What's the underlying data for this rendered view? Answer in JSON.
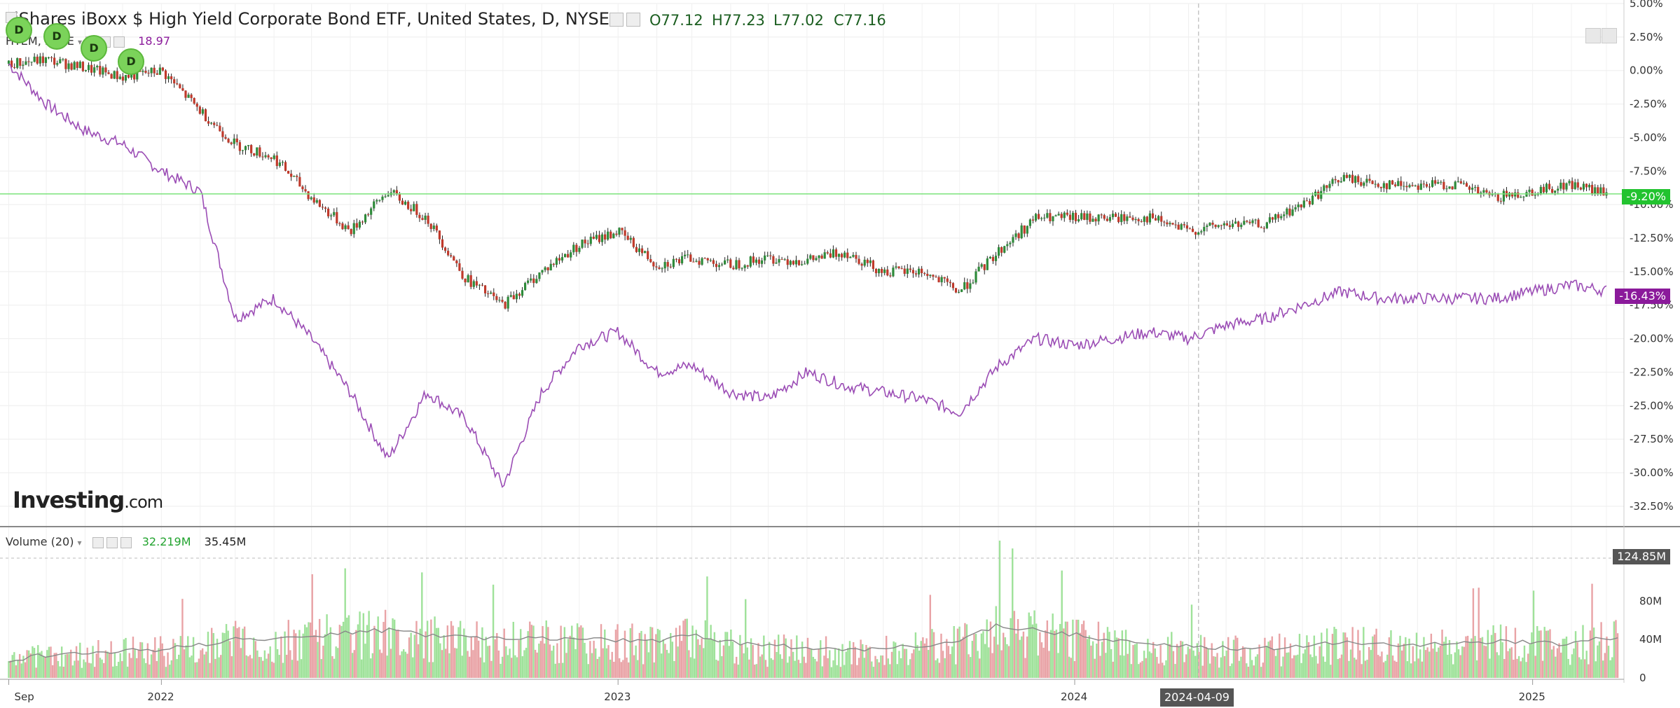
{
  "header": {
    "title": "iShares iBoxx $ High Yield Corporate Bond ETF, United States, D, NYSE",
    "open": "O77.12",
    "high": "H77.23",
    "low": "L77.02",
    "close": "C77.16",
    "compare_symbol": "HYEM, NYSE",
    "compare_value": "18.97",
    "volume_label": "Volume (20)",
    "volume_value_1": "32.219M",
    "volume_value_2": "35.45M"
  },
  "logo": {
    "main": "Investing",
    "suffix": ".com"
  },
  "dividend_marker_label": "D",
  "crosshair_date": "2024-04-09",
  "colors": {
    "up": "#2e8b3a",
    "down": "#c0392b",
    "vol_up": "#9fe29a",
    "vol_down": "#e9a3a6",
    "compare_line": "#9b4db5",
    "volume_ma": "#888888",
    "current_line": "#7be37b",
    "badge_main": "#22c32f",
    "badge_compare": "#8b1a9b",
    "badge_volume": "#555555"
  },
  "chart_data": [
    {
      "type": "line",
      "title": "iShares iBoxx $ High Yield Corporate Bond ETF, United States, D, NYSE",
      "y_unit": "%",
      "ylim": [
        -33.5,
        5.0
      ],
      "y_ticks": [
        "5.00%",
        "2.50%",
        "0.00%",
        "-2.50%",
        "-5.00%",
        "-7.50%",
        "-10.00%",
        "-12.50%",
        "-15.00%",
        "-17.50%",
        "-20.00%",
        "-22.50%",
        "-25.00%",
        "-27.50%",
        "-30.00%",
        "-32.50%"
      ],
      "x_ticks": [
        "Sep",
        "2022",
        "2023",
        "2024",
        "2025"
      ],
      "x_tick_values": [
        "2021-09",
        "2022-01",
        "2023-01",
        "2024-01",
        "2025-01"
      ],
      "grid": true,
      "current_values": {
        "main": "-9.20%",
        "compare": "-16.43%"
      },
      "series": [
        {
          "name": "iShares iBoxx $ High Yield Corporate Bond ETF",
          "style": "candlestick",
          "x": [
            "2021-09-01",
            "2021-10-01",
            "2021-11-01",
            "2021-12-01",
            "2022-01-01",
            "2022-02-01",
            "2022-03-01",
            "2022-04-01",
            "2022-05-01",
            "2022-06-01",
            "2022-07-01",
            "2022-08-01",
            "2022-09-01",
            "2022-10-01",
            "2022-11-01",
            "2022-12-01",
            "2023-01-01",
            "2023-02-01",
            "2023-03-01",
            "2023-04-01",
            "2023-05-01",
            "2023-06-01",
            "2023-07-01",
            "2023-08-01",
            "2023-09-01",
            "2023-10-01",
            "2023-11-01",
            "2023-12-01",
            "2024-01-01",
            "2024-02-01",
            "2024-03-01",
            "2024-04-01",
            "2024-05-01",
            "2024-06-01",
            "2024-07-01",
            "2024-08-01",
            "2024-09-01",
            "2024-10-01",
            "2024-11-01",
            "2024-12-01",
            "2025-01-01",
            "2025-02-01",
            "2025-03-01"
          ],
          "values": [
            0.5,
            0.8,
            0.2,
            -0.5,
            0.0,
            -3.0,
            -5.5,
            -6.5,
            -9.5,
            -12.0,
            -9.0,
            -11.0,
            -15.5,
            -17.5,
            -15.0,
            -13.0,
            -12.0,
            -14.5,
            -14.0,
            -14.5,
            -14.0,
            -14.2,
            -13.5,
            -15.0,
            -15.0,
            -16.5,
            -13.5,
            -11.0,
            -11.0,
            -11.0,
            -11.0,
            -12.0,
            -11.5,
            -11.5,
            -10.0,
            -8.0,
            -8.5,
            -8.5,
            -8.5,
            -9.5,
            -9.0,
            -8.5,
            -9.2
          ]
        },
        {
          "name": "HYEM, NYSE",
          "style": "line",
          "x": [
            "2021-09-01",
            "2021-10-01",
            "2021-11-01",
            "2021-12-01",
            "2022-01-01",
            "2022-02-01",
            "2022-03-01",
            "2022-04-01",
            "2022-05-01",
            "2022-06-01",
            "2022-07-01",
            "2022-08-01",
            "2022-09-01",
            "2022-10-01",
            "2022-11-01",
            "2022-12-01",
            "2023-01-01",
            "2023-02-01",
            "2023-03-01",
            "2023-04-01",
            "2023-05-01",
            "2023-06-01",
            "2023-07-01",
            "2023-08-01",
            "2023-09-01",
            "2023-10-01",
            "2023-11-01",
            "2023-12-01",
            "2024-01-01",
            "2024-02-01",
            "2024-03-01",
            "2024-04-01",
            "2024-05-01",
            "2024-06-01",
            "2024-07-01",
            "2024-08-01",
            "2024-09-01",
            "2024-10-01",
            "2024-11-01",
            "2024-12-01",
            "2025-01-01",
            "2025-02-01",
            "2025-03-01"
          ],
          "values": [
            0.5,
            -2.5,
            -4.5,
            -5.5,
            -7.5,
            -9.0,
            -18.5,
            -17.0,
            -20.0,
            -24.0,
            -29.0,
            -24.0,
            -26.0,
            -31.0,
            -24.0,
            -20.5,
            -19.5,
            -22.5,
            -22.0,
            -24.0,
            -24.5,
            -22.5,
            -23.5,
            -24.0,
            -24.5,
            -25.5,
            -22.0,
            -20.0,
            -20.5,
            -20.0,
            -19.5,
            -20.0,
            -19.0,
            -18.5,
            -17.5,
            -16.5,
            -17.0,
            -17.0,
            -17.0,
            -17.0,
            -16.5,
            -16.0,
            -16.43
          ]
        }
      ]
    },
    {
      "type": "bar",
      "title": "Volume (20)",
      "y_unit": "M",
      "ylim": [
        0,
        130
      ],
      "y_ticks": [
        "0",
        "40M",
        "80M"
      ],
      "max_label": "124.85M",
      "x": [
        "2021-09",
        "2021-10",
        "2021-11",
        "2021-12",
        "2022-01",
        "2022-02",
        "2022-03",
        "2022-04",
        "2022-05",
        "2022-06",
        "2022-07",
        "2022-08",
        "2022-09",
        "2022-10",
        "2022-11",
        "2022-12",
        "2023-01",
        "2023-02",
        "2023-03",
        "2023-04",
        "2023-05",
        "2023-06",
        "2023-07",
        "2023-08",
        "2023-09",
        "2023-10",
        "2023-11",
        "2023-12",
        "2024-01",
        "2024-02",
        "2024-03",
        "2024-04",
        "2024-05",
        "2024-06",
        "2024-07",
        "2024-08",
        "2024-09",
        "2024-10",
        "2024-11",
        "2024-12",
        "2025-01",
        "2025-02",
        "2025-03"
      ],
      "series": [
        {
          "name": "Volume",
          "values": [
            20,
            25,
            28,
            30,
            30,
            38,
            42,
            40,
            45,
            48,
            52,
            45,
            42,
            40,
            42,
            40,
            40,
            38,
            50,
            35,
            33,
            30,
            30,
            32,
            35,
            40,
            60,
            50,
            45,
            38,
            35,
            32,
            30,
            32,
            35,
            40,
            35,
            35,
            38,
            40,
            38,
            35,
            45
          ]
        },
        {
          "name": "Volume (20)",
          "values": [
            18,
            24,
            27,
            28,
            30,
            35,
            40,
            40,
            43,
            47,
            50,
            45,
            42,
            41,
            41,
            40,
            40,
            39,
            45,
            37,
            34,
            31,
            30,
            31,
            34,
            38,
            55,
            50,
            45,
            39,
            35,
            33,
            31,
            31,
            34,
            37,
            35,
            35,
            37,
            38,
            37,
            35,
            42
          ]
        }
      ]
    }
  ]
}
